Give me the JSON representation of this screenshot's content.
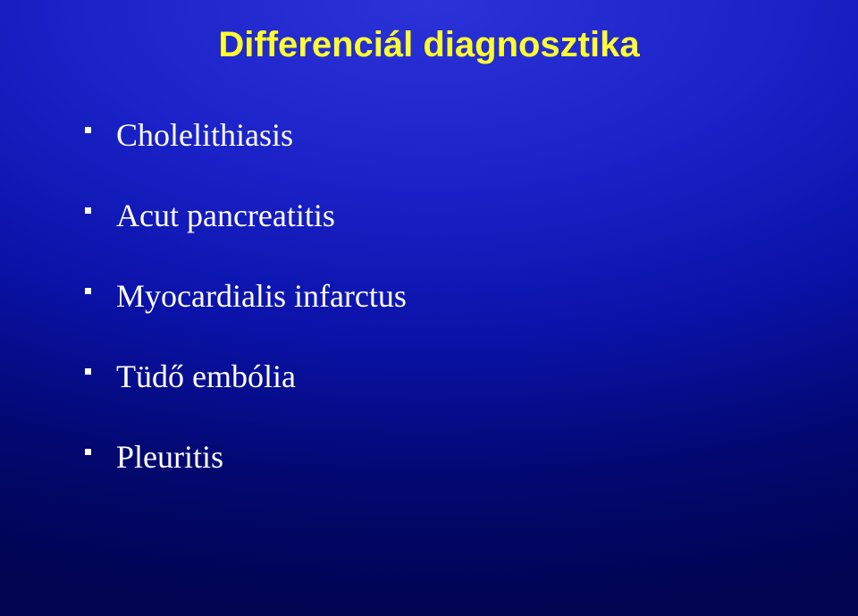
{
  "slide": {
    "title": "Differenciál diagnosztika",
    "title_color": "#ffff30",
    "title_fontsize": 40,
    "title_font": "Arial",
    "body_color": "#ffffff",
    "body_fontsize": 36,
    "body_font": "Times New Roman",
    "background_gradient": {
      "type": "radial",
      "stops": [
        "#2a32d8",
        "#1a22c8",
        "#0a12a8",
        "#020870",
        "#010450"
      ]
    },
    "bullets": [
      "Cholelithiasis",
      "Acut pancreatitis",
      "Myocardialis infarctus",
      "Tüdő embólia",
      "Pleuritis"
    ]
  }
}
